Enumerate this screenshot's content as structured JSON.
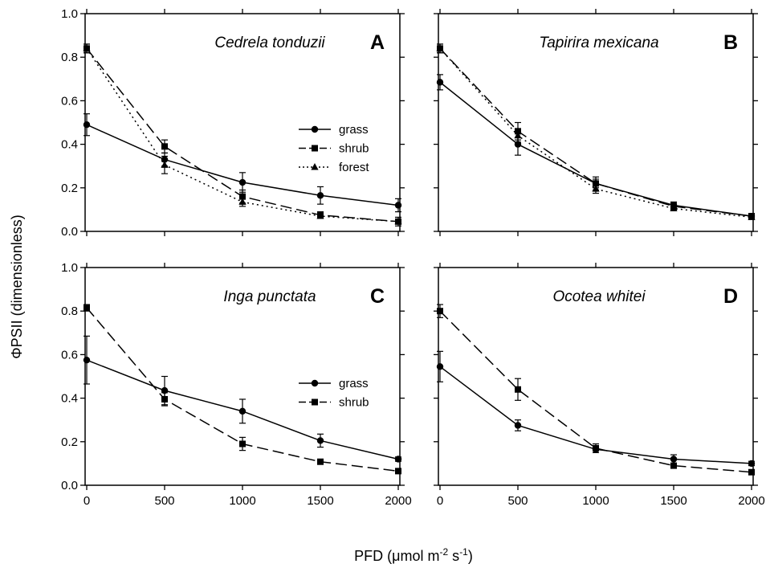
{
  "figure": {
    "ylabel": "ΦPSII (dimensionless)",
    "xlabel_main": "PFD (",
    "xlabel_unit_mu": "μ",
    "xlabel_unit_rest": "mol m",
    "xlabel_sup1": "-2",
    "xlabel_mid": " s",
    "xlabel_sup2": "-1",
    "xlabel_close": ")"
  },
  "chart_data": [
    {
      "type": "line",
      "panel": "A",
      "title": "Cedrela tonduzii",
      "x": [
        0,
        500,
        1000,
        1500,
        2000
      ],
      "xticks": [
        "0",
        "500",
        "1000",
        "1500",
        "2000"
      ],
      "show_xticklabels": false,
      "ylim": [
        0,
        1.0
      ],
      "yticks": [
        "0.0",
        "0.2",
        "0.4",
        "0.6",
        "0.8",
        "1.0"
      ],
      "show_yticklabels": true,
      "legend": "center-right",
      "series": [
        {
          "name": "grass",
          "marker": "circle",
          "dash": "solid",
          "values": [
            0.49,
            0.33,
            0.225,
            0.165,
            0.12
          ],
          "errors": [
            0.05,
            0.03,
            0.045,
            0.04,
            0.03
          ]
        },
        {
          "name": "shrub",
          "marker": "square",
          "dash": "long",
          "values": [
            0.84,
            0.39,
            0.16,
            0.075,
            0.045
          ],
          "errors": [
            0.02,
            0.03,
            0.03,
            0.015,
            0.02
          ]
        },
        {
          "name": "forest",
          "marker": "triangle",
          "dash": "dotted",
          "values": [
            0.84,
            0.305,
            0.135,
            0.07,
            0.045
          ],
          "errors": [
            0.02,
            0.04,
            0.02,
            0.01,
            0.01
          ]
        }
      ]
    },
    {
      "type": "line",
      "panel": "B",
      "title": "Tapirira mexicana",
      "x": [
        0,
        500,
        1000,
        1500,
        2000
      ],
      "xticks": [
        "0",
        "500",
        "1000",
        "1500",
        "2000"
      ],
      "show_xticklabels": false,
      "ylim": [
        0,
        1.0
      ],
      "yticks": [
        "0.0",
        "0.2",
        "0.4",
        "0.6",
        "0.8",
        "1.0"
      ],
      "show_yticklabels": false,
      "series": [
        {
          "marker": "circle",
          "dash": "solid",
          "values": [
            0.685,
            0.4,
            0.22,
            0.12,
            0.07
          ],
          "errors": [
            0.035,
            0.05,
            0.02,
            0.015,
            0.01
          ]
        },
        {
          "marker": "square",
          "dash": "long",
          "values": [
            0.84,
            0.46,
            0.22,
            0.115,
            0.07
          ],
          "errors": [
            0.02,
            0.04,
            0.03,
            0.015,
            0.01
          ]
        },
        {
          "marker": "triangle",
          "dash": "dotted",
          "values": [
            0.84,
            0.44,
            0.195,
            0.105,
            0.065
          ],
          "errors": [
            0.02,
            0.03,
            0.02,
            0.01,
            0.01
          ]
        }
      ]
    },
    {
      "type": "line",
      "panel": "C",
      "title": "Inga punctata",
      "x": [
        0,
        500,
        1000,
        1500,
        2000
      ],
      "xticks": [
        "0",
        "500",
        "1000",
        "1500",
        "2000"
      ],
      "show_xticklabels": true,
      "ylim": [
        0,
        1.0
      ],
      "yticks": [
        "0.0",
        "0.2",
        "0.4",
        "0.6",
        "0.8",
        "1.0"
      ],
      "show_yticklabels": true,
      "legend": "center-right",
      "series": [
        {
          "name": "grass",
          "marker": "circle",
          "dash": "solid",
          "values": [
            0.575,
            0.435,
            0.34,
            0.205,
            0.12
          ],
          "errors": [
            0.11,
            0.065,
            0.055,
            0.03,
            0.01
          ]
        },
        {
          "name": "shrub",
          "marker": "square",
          "dash": "long",
          "values": [
            0.815,
            0.395,
            0.19,
            0.108,
            0.065
          ],
          "errors": [
            0.015,
            0.03,
            0.03,
            0.01,
            0.01
          ]
        }
      ]
    },
    {
      "type": "line",
      "panel": "D",
      "title": "Ocotea whitei",
      "x": [
        0,
        500,
        1000,
        1500,
        2000
      ],
      "xticks": [
        "0",
        "500",
        "1000",
        "1500",
        "2000"
      ],
      "show_xticklabels": true,
      "ylim": [
        0,
        1.0
      ],
      "yticks": [
        "0.0",
        "0.2",
        "0.4",
        "0.6",
        "0.8",
        "1.0"
      ],
      "show_yticklabels": false,
      "series": [
        {
          "marker": "circle",
          "dash": "solid",
          "values": [
            0.545,
            0.275,
            0.165,
            0.12,
            0.1
          ],
          "errors": [
            0.07,
            0.025,
            0.015,
            0.02,
            0.01
          ]
        },
        {
          "marker": "square",
          "dash": "long",
          "values": [
            0.8,
            0.44,
            0.17,
            0.09,
            0.06
          ],
          "errors": [
            0.03,
            0.05,
            0.02,
            0.01,
            0.01
          ]
        }
      ]
    }
  ]
}
